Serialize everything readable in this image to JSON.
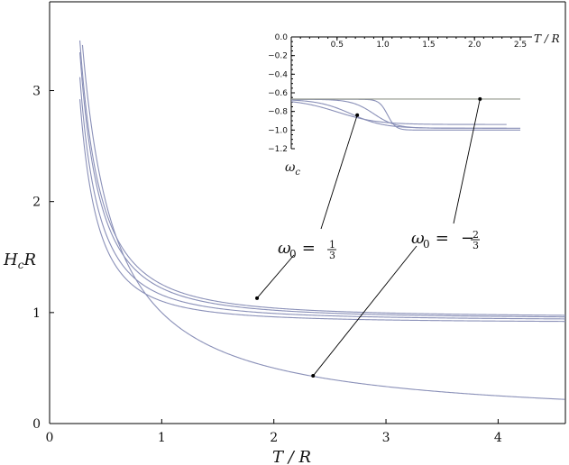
{
  "chart_data": [
    {
      "type": "line",
      "xlabel": "T / R",
      "ylabel": "H_c R",
      "xlim": [
        0,
        4.6
      ],
      "ylim": [
        0,
        3.8
      ],
      "x_ticks": [
        0,
        1,
        2,
        3,
        4
      ],
      "y_ticks": [
        0,
        1,
        2,
        3
      ],
      "x_tick_labels": [
        "0",
        "1",
        "2",
        "3",
        "4"
      ],
      "y_tick_labels": [
        "0",
        "1",
        "2",
        "3"
      ],
      "series": [
        {
          "k": 0.74,
          "c": 0.958,
          "p": 1.9,
          "offset": 0.045
        },
        {
          "k": 0.7,
          "c": 0.945,
          "p": 1.9,
          "offset": 0.05
        },
        {
          "k": 0.62,
          "c": 0.93,
          "p": 1.9,
          "offset": 0.06
        },
        {
          "k": 0.55,
          "c": 0.91,
          "p": 1.9,
          "offset": 0.07
        },
        {
          "k": 1.0,
          "c": 0.0,
          "p": 1.0,
          "offset": 0.0
        }
      ],
      "annotations": [
        {
          "label": "ω0 = 1/3",
          "base": "ω",
          "sub": "0",
          "eq": " = ",
          "num": "1",
          "den": "3",
          "sign": ""
        },
        {
          "label": "ω0 = −2/3",
          "base": "ω",
          "sub": "0",
          "eq": " = ",
          "num": "2",
          "den": "3",
          "sign": "−"
        }
      ],
      "annotation_points": [
        {
          "x": 1.85,
          "y": 1.13
        },
        {
          "x": 2.35,
          "y": 0.43
        }
      ]
    },
    {
      "type": "line",
      "xlabel": "T / R",
      "ylabel": "ω_c",
      "xlim": [
        0,
        2.5
      ],
      "ylim": [
        -1.2,
        0
      ],
      "x_ticks": [
        0,
        0.5,
        1.0,
        1.5,
        2.0,
        2.5
      ],
      "y_ticks": [
        0,
        -0.2,
        -0.4,
        -0.6,
        -0.8,
        -1.0,
        -1.2
      ],
      "x_tick_labels": [
        "0.0",
        "0.5",
        "1.0",
        "1.5",
        "2.0",
        "2.5"
      ],
      "y_tick_labels": [
        "0.0",
        "−0.2",
        "−0.4",
        "−0.6",
        "−0.8",
        "−1.0",
        "−1.2"
      ],
      "series": [
        {
          "start": -0.67,
          "end": -1.0,
          "mid": 1.05,
          "width": 0.045,
          "xmax": 2.5
        },
        {
          "start": -0.67,
          "end": -0.98,
          "mid": 0.9,
          "width": 0.12,
          "xmax": 2.5
        },
        {
          "start": -0.67,
          "end": -0.98,
          "mid": 0.65,
          "width": 0.18,
          "xmax": 2.35
        },
        {
          "start": -0.67,
          "end": -0.94,
          "mid": 0.5,
          "width": 0.22,
          "xmax": 2.35
        },
        {
          "start": -0.667,
          "end": -0.667,
          "mid": 1.0,
          "width": 0.1,
          "xmax": 2.5
        }
      ],
      "annotation_points": [
        {
          "x": 0.72,
          "y": -0.84
        },
        {
          "x": 2.06,
          "y": -0.667
        }
      ]
    }
  ]
}
